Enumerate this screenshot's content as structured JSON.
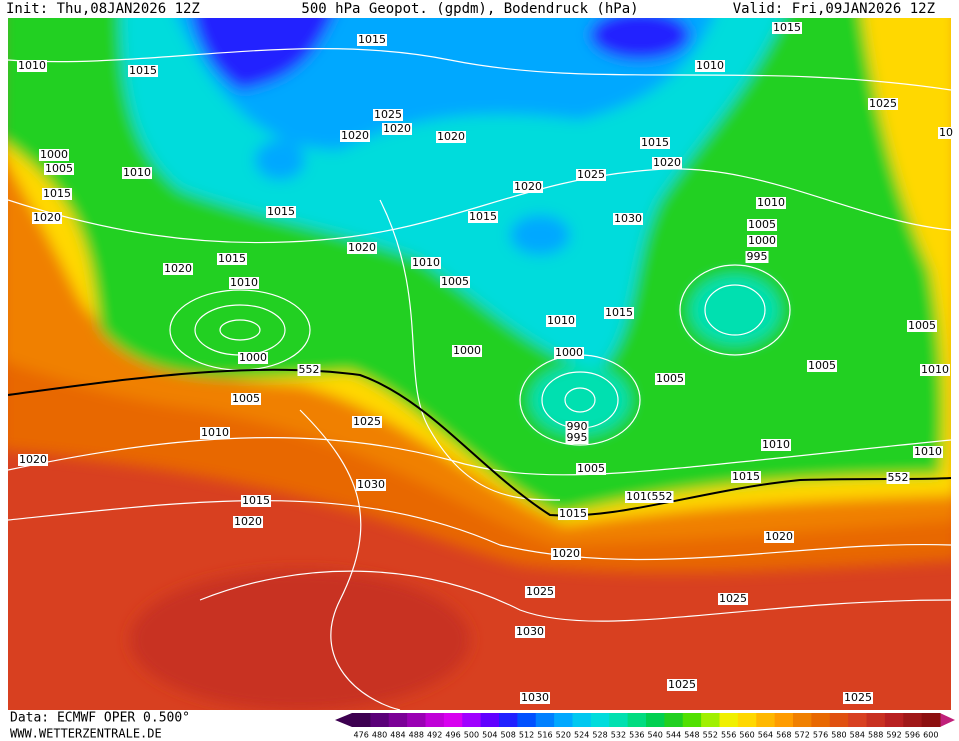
{
  "header": {
    "init": "Init: Thu,08JAN2026 12Z",
    "title": "500 hPa Geopot. (gpdm), Bodendruck (hPa)",
    "valid": "Valid: Fri,09JAN2026 12Z"
  },
  "isobar_labels": [
    1015,
    1010,
    1015,
    1010,
    1015,
    1025,
    10,
    1025,
    1020,
    1020,
    1020,
    1015,
    1020,
    1000,
    1005,
    1010,
    1015,
    1020,
    1020,
    1025,
    1015,
    1015,
    1030,
    1010,
    1005,
    1000,
    995,
    1020,
    1010,
    1020,
    1015,
    1010,
    1005,
    1010,
    1015,
    1005,
    1000,
    1000,
    1000,
    552,
    1005,
    1005,
    1010,
    1005,
    1025,
    1010,
    990,
    995,
    1010,
    1010,
    1020,
    1005,
    1015,
    552,
    1030,
    1010,
    552,
    1015,
    1015,
    1020,
    1020,
    1020,
    1025,
    1025,
    1030,
    1025,
    1030,
    1025
  ],
  "colorbar": {
    "values": [
      476,
      480,
      484,
      488,
      492,
      496,
      500,
      504,
      508,
      512,
      516,
      520,
      524,
      528,
      532,
      536,
      540,
      544,
      548,
      552,
      556,
      560,
      564,
      568,
      572,
      576,
      580,
      584,
      588,
      592,
      596,
      600
    ],
    "colors": [
      "#3c0050",
      "#5a0078",
      "#7a0096",
      "#9a00b4",
      "#c000d8",
      "#d800f0",
      "#a000ff",
      "#6000ff",
      "#2020ff",
      "#0050ff",
      "#0080ff",
      "#00a8ff",
      "#00c8f0",
      "#00dcdc",
      "#00e0b0",
      "#00dc80",
      "#00d050",
      "#20d020",
      "#50e000",
      "#a0f000",
      "#f0f000",
      "#ffd800",
      "#ffb800",
      "#ff9c00",
      "#f08000",
      "#e86800",
      "#e05010",
      "#d84020",
      "#c83020",
      "#b82020",
      "#a01818",
      "#8c1010"
    ]
  },
  "footer": {
    "source": "Data: ECMWF OPER 0.500°",
    "site": "WWW.WETTERZENTRALE.DE"
  }
}
